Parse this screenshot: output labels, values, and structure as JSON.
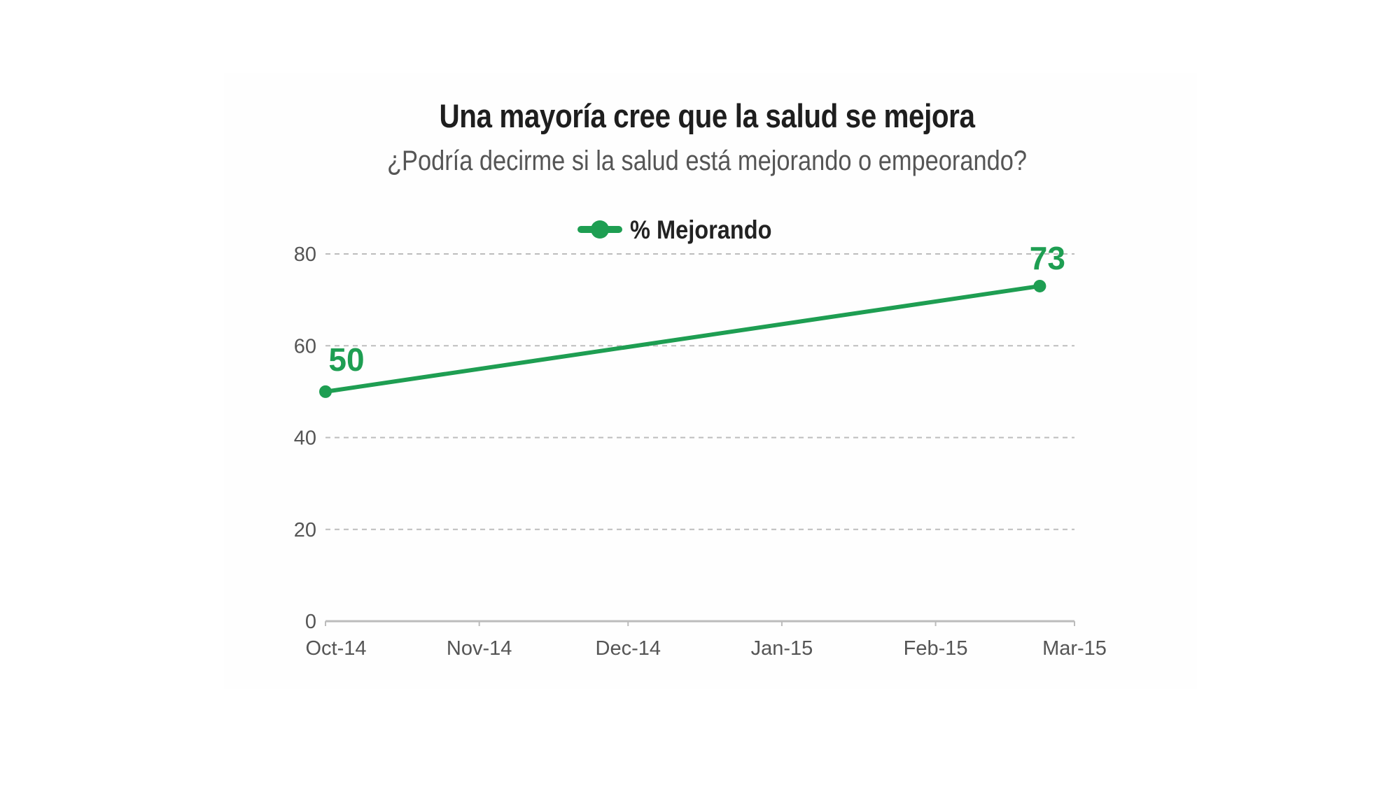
{
  "chart_data": {
    "type": "line",
    "title": "Una mayoría cree que la salud se mejora",
    "subtitle": "¿Podría decirme si la salud está mejorando o empeorando?",
    "xlabel": "",
    "ylabel": "",
    "x_ticks": [
      "Oct-14",
      "Nov-14",
      "Dec-14",
      "Jan-15",
      "Feb-15",
      "Mar-15"
    ],
    "y_ticks": [
      0,
      20,
      40,
      60,
      80
    ],
    "ylim": [
      0,
      80
    ],
    "xlim": [
      "2014-10-01",
      "2015-03-01"
    ],
    "grid": true,
    "legend_position": "top-center",
    "series": [
      {
        "name": "% Mejorando",
        "color": "#1e9e52",
        "points": [
          {
            "x": "2014-10-01",
            "y": 50,
            "label": "50"
          },
          {
            "x": "2015-02-22",
            "y": 73,
            "label": "73"
          }
        ]
      }
    ]
  }
}
